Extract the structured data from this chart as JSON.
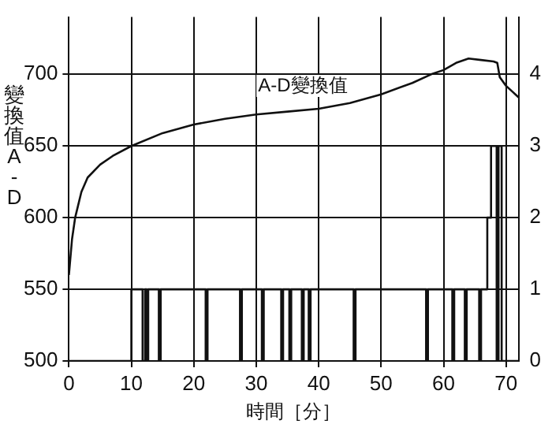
{
  "chart_data": {
    "type": "line",
    "xlabel": "時間［分］",
    "ylabel": "變換值A-D",
    "annotations": [
      "A-D變換值"
    ],
    "xlim": [
      0,
      72
    ],
    "xticks": [
      0,
      10,
      20,
      30,
      40,
      50,
      60,
      70
    ],
    "ylim": [
      500,
      740
    ],
    "yticks": [
      500,
      550,
      600,
      650,
      700
    ],
    "y2lim": [
      0,
      4.8
    ],
    "y2ticks": [
      0,
      1,
      2,
      3,
      4
    ],
    "grid": true,
    "legend": false,
    "marker": "none",
    "line_style": "solid",
    "series": [
      {
        "color": "#111111",
        "x": [
          0,
          0.5,
          1,
          2,
          3,
          5,
          7,
          10,
          15,
          20,
          25,
          30,
          35,
          40,
          45,
          50,
          55,
          58,
          60,
          62,
          64,
          66,
          68,
          68.6,
          69,
          70,
          71,
          72
        ],
        "values": [
          560,
          585,
          600,
          618,
          628,
          637,
          643,
          650,
          659,
          665,
          669,
          672,
          674,
          676,
          680,
          686,
          694,
          700,
          703,
          708,
          711,
          710,
          709,
          708,
          698,
          692,
          688,
          684
        ]
      },
      {
        "type": "step",
        "axis": "y2",
        "color": "#111111",
        "x": [
          0,
          10,
          11.8,
          12.2,
          12.4,
          12.7,
          14.4,
          14.7,
          21.9,
          22.2,
          27.4,
          27.7,
          30.9,
          31.2,
          34,
          34.3,
          35.3,
          35.6,
          37.3,
          37.6,
          38.4,
          38.7,
          45.6,
          45.9,
          57.2,
          57.5,
          61.4,
          61.7,
          63.4,
          63.7,
          65.7,
          66,
          67,
          67.6,
          68.5,
          68.8,
          69.3,
          72
        ],
        "values": [
          0,
          1,
          0,
          1,
          0,
          1,
          0,
          1,
          0,
          1,
          0,
          1,
          0,
          1,
          0,
          1,
          0,
          1,
          0,
          1,
          0,
          1,
          0,
          1,
          0,
          1,
          0,
          1,
          0,
          1,
          0,
          1,
          2,
          3,
          0,
          3,
          0,
          0
        ]
      }
    ]
  }
}
